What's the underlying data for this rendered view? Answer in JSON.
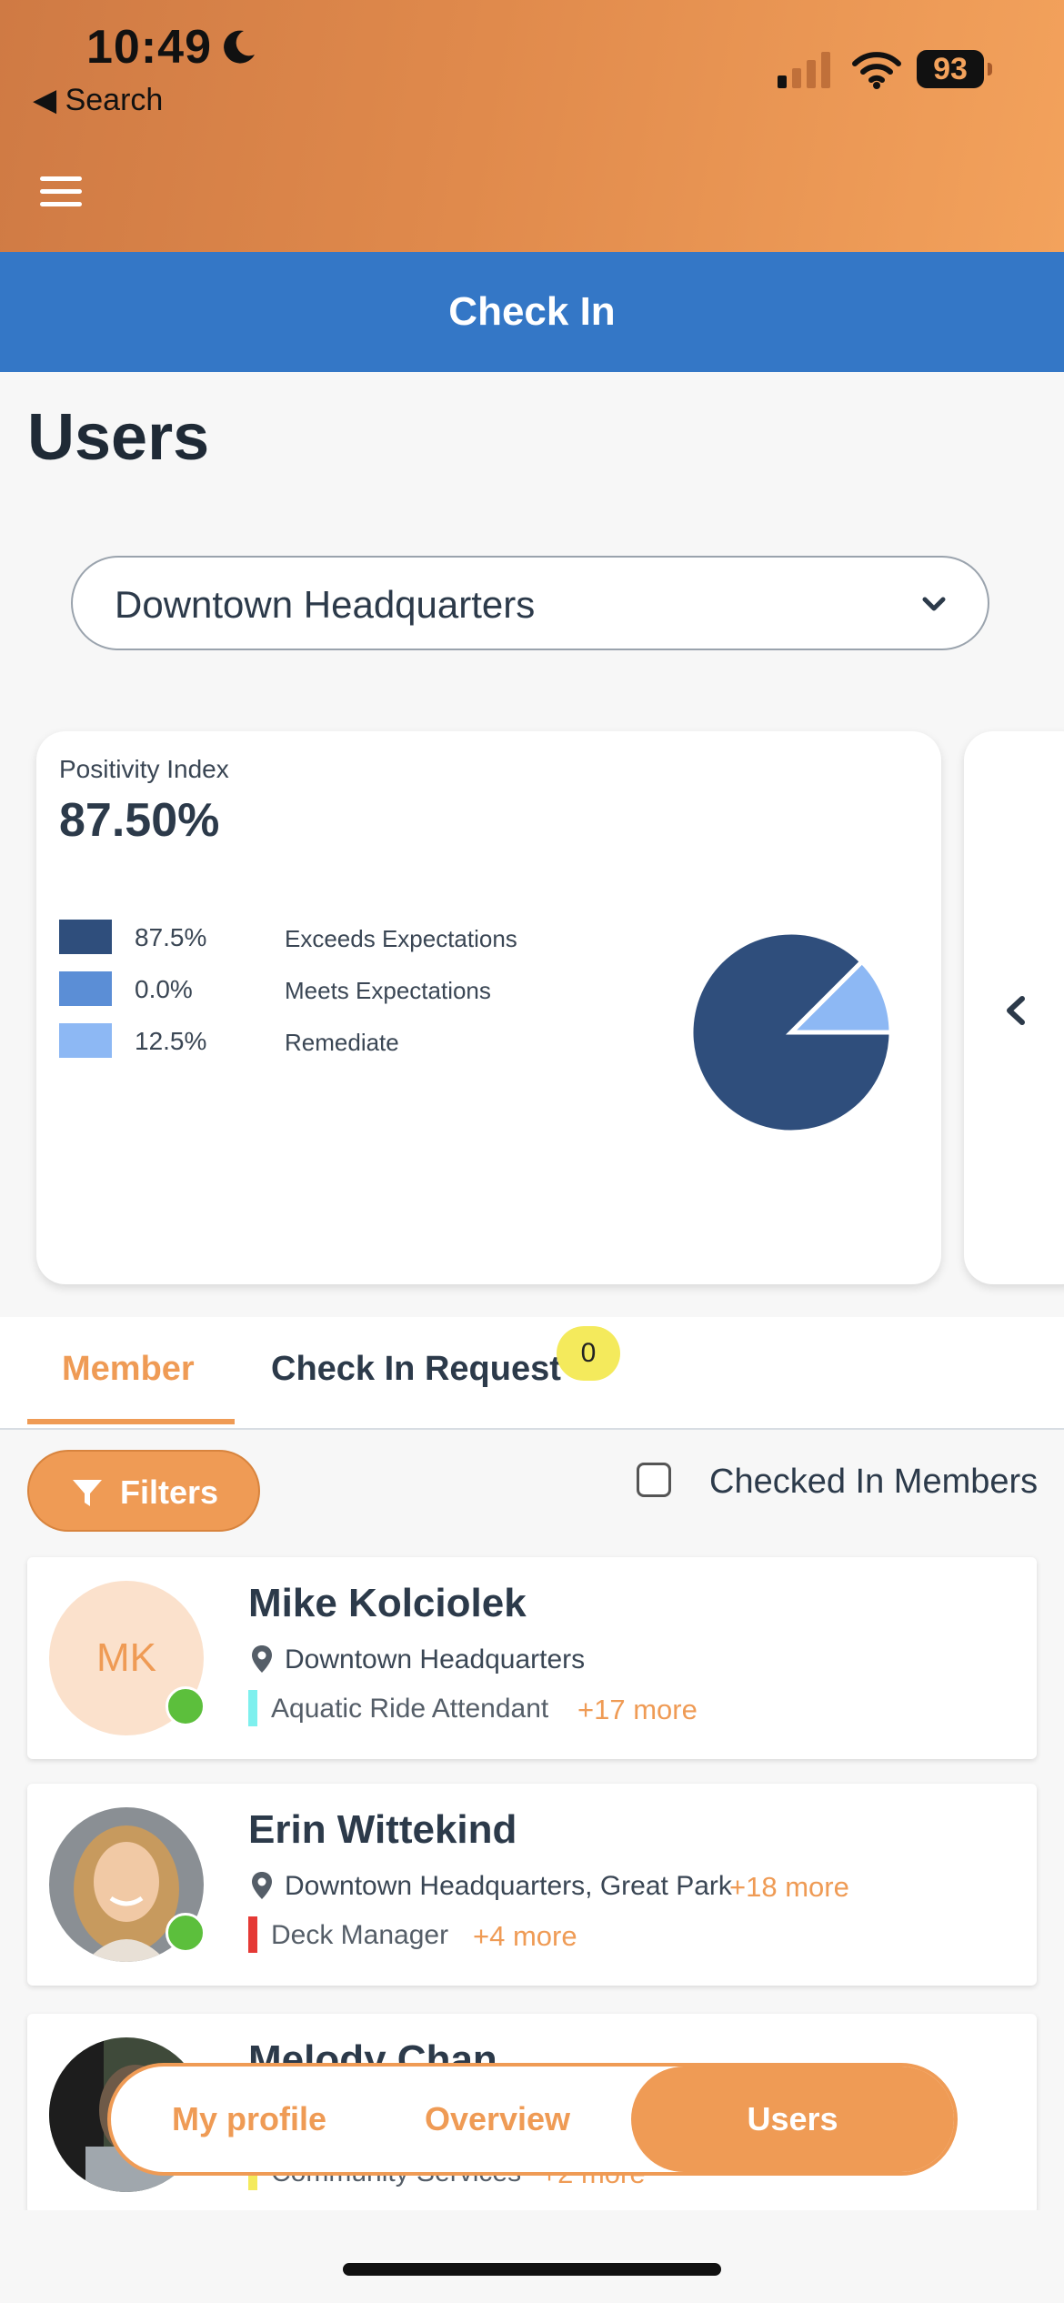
{
  "status_bar": {
    "time": "10:49",
    "back_label": "◀ Search",
    "battery": "93"
  },
  "header": {
    "section_title": "Check In"
  },
  "page": {
    "title": "Users"
  },
  "location_select": {
    "value": "Downtown Headquarters"
  },
  "positivity": {
    "label": "Positivity Index",
    "value": "87.50%",
    "legend": [
      {
        "pct": "87.5%",
        "name": "Exceeds Expectations",
        "color": "#2f4e7c"
      },
      {
        "pct": "0.0%",
        "name": "Meets Expectations",
        "color": "#5b8ed6"
      },
      {
        "pct": "12.5%",
        "name": "Remediate",
        "color": "#8db8f4"
      }
    ]
  },
  "chart_data": {
    "type": "pie",
    "categories": [
      "Exceeds Expectations",
      "Meets Expectations",
      "Remediate"
    ],
    "values": [
      87.5,
      0.0,
      12.5
    ],
    "colors": [
      "#2f4e7c",
      "#5b8ed6",
      "#8db8f4"
    ]
  },
  "tabs": {
    "member": "Member",
    "check_in_request": "Check In Request",
    "request_count": "0"
  },
  "filters": {
    "button_label": "Filters",
    "checkbox_label": "Checked In Members"
  },
  "users": [
    {
      "name": "Mike Kolciolek",
      "initials": "MK",
      "location": "Downtown Headquarters",
      "location_more": "",
      "role": "Aquatic Ride Attendant",
      "role_more": "+17 more",
      "role_color": "#7ef0ee"
    },
    {
      "name": "Erin Wittekind",
      "initials": "",
      "location": "Downtown Headquarters, Great Park",
      "location_more": "+18 more",
      "role": "Deck Manager",
      "role_more": "+4 more",
      "role_color": "#e53935"
    },
    {
      "name": "Melody Chan",
      "initials": "",
      "location": "",
      "location_more": "",
      "role": "Community Services",
      "role_more": "+2 more",
      "role_color": "#f4ea5c"
    }
  ],
  "bottom_nav": {
    "my_profile": "My profile",
    "overview": "Overview",
    "users": "Users"
  }
}
